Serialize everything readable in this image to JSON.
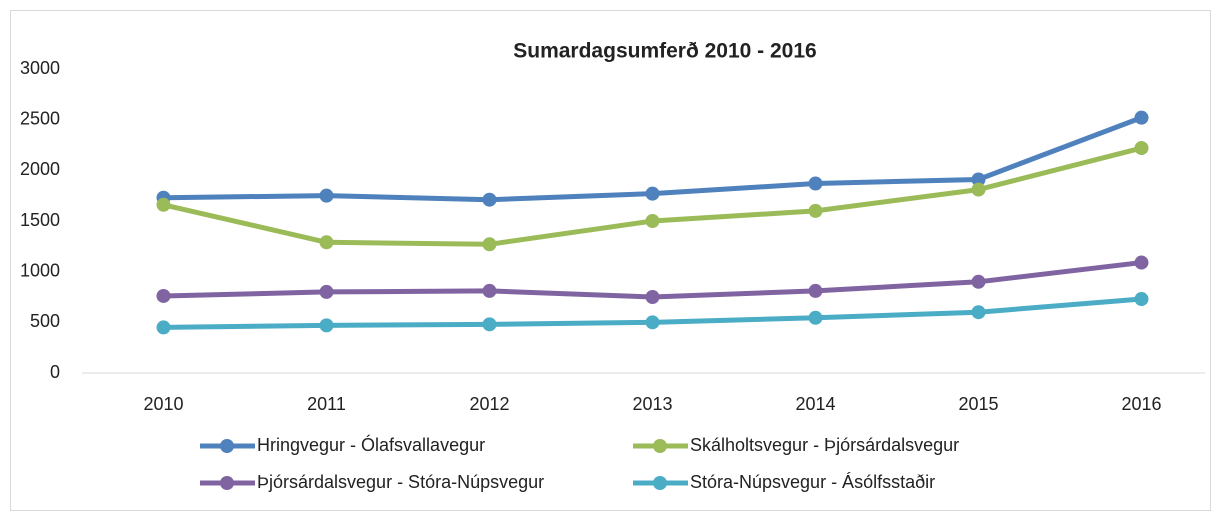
{
  "chart_data": {
    "type": "line",
    "title": "Sumardagsumferð 2010 - 2016",
    "categories": [
      "2010",
      "2011",
      "2012",
      "2013",
      "2014",
      "2015",
      "2016"
    ],
    "series": [
      {
        "name": "Hringvegur - Ólafsvallavegur",
        "color": "#4f81bd",
        "values": [
          1730,
          1750,
          1710,
          1770,
          1870,
          1910,
          2520
        ]
      },
      {
        "name": "Skálholtsvegur - Þjórsárdalsvegur",
        "color": "#9bbb59",
        "values": [
          1660,
          1290,
          1270,
          1500,
          1600,
          1810,
          2220
        ]
      },
      {
        "name": "Þjórsárdalsvegur - Stóra-Núpsvegur",
        "color": "#8064a2",
        "values": [
          760,
          800,
          810,
          750,
          810,
          900,
          1090
        ]
      },
      {
        "name": "Stóra-Núpsvegur - Ásólfsstaðir",
        "color": "#4bacc6",
        "values": [
          450,
          470,
          480,
          500,
          545,
          600,
          730
        ]
      }
    ],
    "ylim": [
      0,
      3000
    ],
    "yticks": [
      0,
      500,
      1000,
      1500,
      2000,
      2500,
      3000
    ],
    "grid": false,
    "legend": "bottom"
  }
}
